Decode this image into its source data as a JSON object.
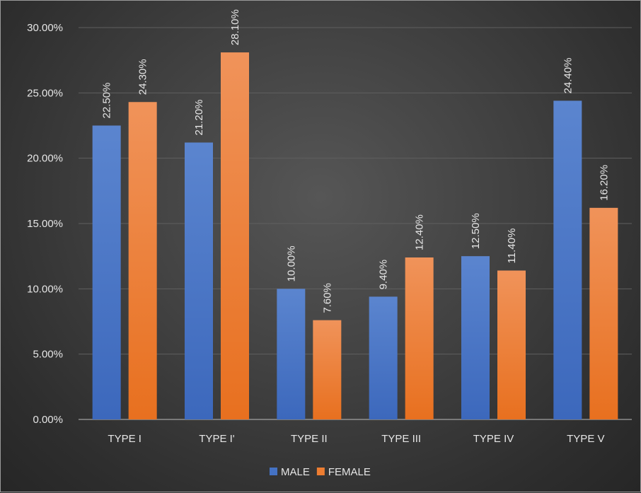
{
  "chart_data": {
    "type": "bar",
    "title": "",
    "xlabel": "",
    "ylabel": "",
    "categories": [
      "TYPE I",
      "TYPE I'",
      "TYPE II",
      "TYPE III",
      "TYPE IV",
      "TYPE V"
    ],
    "series": [
      {
        "name": "MALE",
        "color": "#4472c4",
        "values": [
          22.5,
          21.2,
          10.0,
          9.4,
          12.5,
          24.4
        ],
        "labels": [
          "22.50%",
          "21.20%",
          "10.00%",
          "9.40%",
          "12.50%",
          "24.40%"
        ]
      },
      {
        "name": "FEMALE",
        "color": "#ed7d31",
        "values": [
          24.3,
          28.1,
          7.6,
          12.4,
          11.4,
          16.2
        ],
        "labels": [
          "24.30%",
          "28.10%",
          "7.60%",
          "12.40%",
          "11.40%",
          "16.20%"
        ]
      }
    ],
    "ylim": [
      0,
      30
    ],
    "yticks": [
      0,
      5,
      10,
      15,
      20,
      25,
      30
    ],
    "ytick_labels": [
      "0.00%",
      "5.00%",
      "10.00%",
      "15.00%",
      "20.00%",
      "25.00%",
      "30.00%"
    ],
    "grid": true,
    "legend_position": "bottom"
  }
}
